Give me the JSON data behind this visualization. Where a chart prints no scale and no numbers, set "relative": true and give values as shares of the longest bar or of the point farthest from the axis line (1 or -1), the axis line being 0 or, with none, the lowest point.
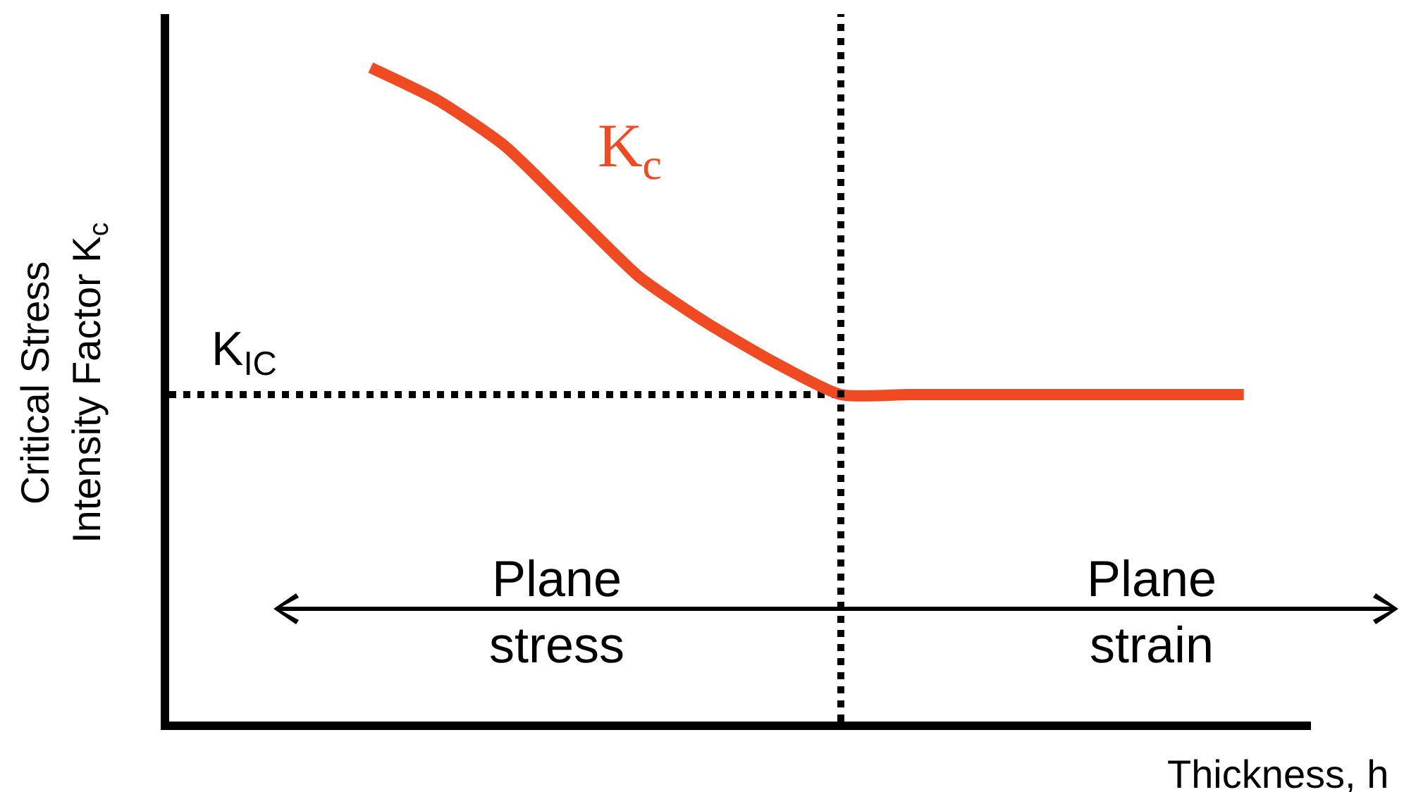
{
  "chart_data": {
    "type": "line",
    "relative": true,
    "xlabel": "Thickness, h",
    "ylabel": "Critical Stress\nIntensity Factor K$_{c}$",
    "categories": [
      null,
      null,
      null,
      null,
      null,
      null,
      null,
      null,
      null,
      null,
      null,
      null,
      null,
      null,
      null,
      null,
      null,
      null
    ],
    "series": [
      {
        "name": "K$_{c}$",
        "color": "#f04a23",
        "values": [
          null,
          null,
          null,
          1.0,
          0.95,
          0.88,
          0.78,
          0.68,
          0.61,
          0.55,
          0.5,
          0.5,
          0.5,
          0.5,
          0.5,
          0.5,
          0.5,
          null
        ]
      }
    ],
    "ref_lines": [
      {
        "axis": "y",
        "value": 0.5,
        "label": "K$_{IC}$",
        "line_style": "dotted",
        "color": "#000000"
      }
    ],
    "annotations": [
      "Plane stress",
      "Plane strain"
    ],
    "legend": false,
    "marker": "none",
    "line_style": "solid"
  }
}
